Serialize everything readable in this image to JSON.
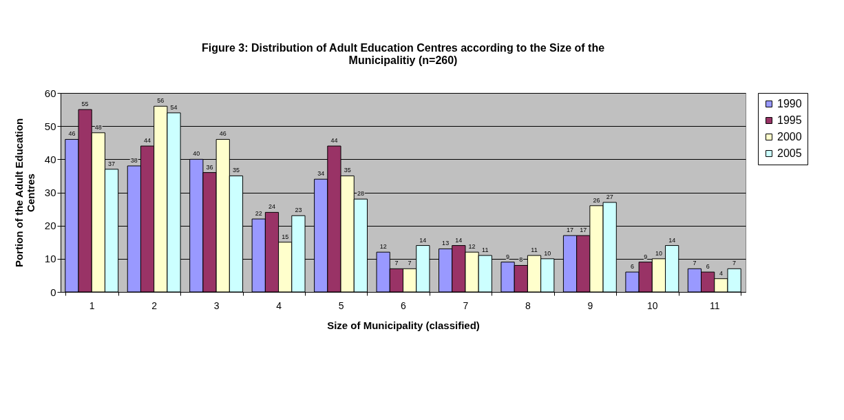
{
  "chart_data": {
    "type": "bar",
    "title": "Figure 3: Distribution of Adult Education Centres according to the Size of the Municipalitiy (n=260)",
    "xlabel": "Size of Municipality (classified)",
    "ylabel": "Portion of the Adult Education Centres",
    "categories": [
      "1",
      "2",
      "3",
      "4",
      "5",
      "6",
      "7",
      "8",
      "9",
      "10",
      "11"
    ],
    "series": [
      {
        "name": "1990",
        "color": "#9999ff",
        "values": [
          46,
          38,
          40,
          22,
          34,
          12,
          13,
          9,
          17,
          6,
          7
        ]
      },
      {
        "name": "1995",
        "color": "#993366",
        "values": [
          55,
          44,
          36,
          24,
          44,
          7,
          14,
          8,
          17,
          9,
          6
        ]
      },
      {
        "name": "2000",
        "color": "#ffffcc",
        "values": [
          48,
          56,
          46,
          15,
          35,
          7,
          12,
          11,
          26,
          10,
          4
        ]
      },
      {
        "name": "2005",
        "color": "#ccffff",
        "values": [
          37,
          54,
          35,
          23,
          28,
          14,
          11,
          10,
          27,
          14,
          7
        ]
      }
    ],
    "ylim": [
      0,
      60
    ],
    "yticks": [
      0,
      10,
      20,
      30,
      40,
      50,
      60
    ],
    "grid": "y",
    "legend": "right",
    "data_labels": true
  }
}
